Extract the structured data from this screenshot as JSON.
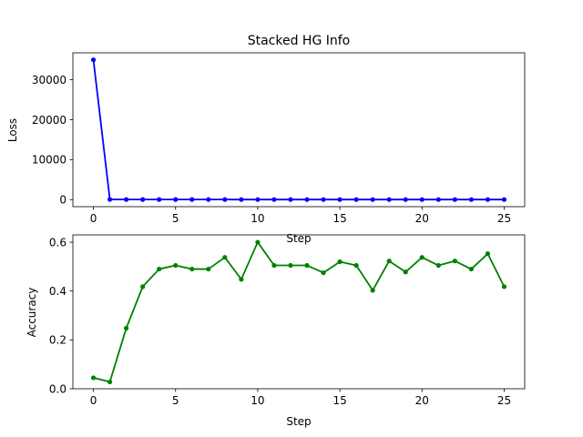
{
  "chart_data": [
    {
      "type": "line",
      "title": "Stacked HG Info",
      "xlabel": "Step",
      "ylabel": "Loss",
      "xlim": [
        -1.25,
        26.25
      ],
      "ylim": [
        -1750,
        36750
      ],
      "xticks": [
        0,
        5,
        10,
        15,
        20,
        25
      ],
      "yticks": [
        0,
        10000,
        20000,
        30000
      ],
      "grid": false,
      "color": "#0000ff",
      "x": [
        0,
        1,
        2,
        3,
        4,
        5,
        6,
        7,
        8,
        9,
        10,
        11,
        12,
        13,
        14,
        15,
        16,
        17,
        18,
        19,
        20,
        21,
        22,
        23,
        24,
        25
      ],
      "values": [
        35000,
        60,
        50,
        45,
        42,
        40,
        38,
        36,
        35,
        34,
        33,
        32,
        31,
        30,
        30,
        29,
        29,
        28,
        28,
        27,
        27,
        27,
        26,
        26,
        26,
        25
      ]
    },
    {
      "type": "line",
      "title": "",
      "xlabel": "Step",
      "ylabel": "Accuracy",
      "xlim": [
        -1.25,
        26.25
      ],
      "ylim": [
        0,
        0.63
      ],
      "xticks": [
        0,
        5,
        10,
        15,
        20,
        25
      ],
      "yticks": [
        0.0,
        0.2,
        0.4,
        0.6
      ],
      "grid": false,
      "color": "#008000",
      "x": [
        0,
        1,
        2,
        3,
        4,
        5,
        6,
        7,
        8,
        9,
        10,
        11,
        12,
        13,
        14,
        15,
        16,
        17,
        18,
        19,
        20,
        21,
        22,
        23,
        24,
        25
      ],
      "values": [
        0.045,
        0.028,
        0.248,
        0.418,
        0.49,
        0.505,
        0.49,
        0.49,
        0.538,
        0.448,
        0.6,
        0.505,
        0.505,
        0.505,
        0.475,
        0.52,
        0.505,
        0.403,
        0.523,
        0.478,
        0.538,
        0.505,
        0.523,
        0.49,
        0.553,
        0.418
      ]
    }
  ]
}
